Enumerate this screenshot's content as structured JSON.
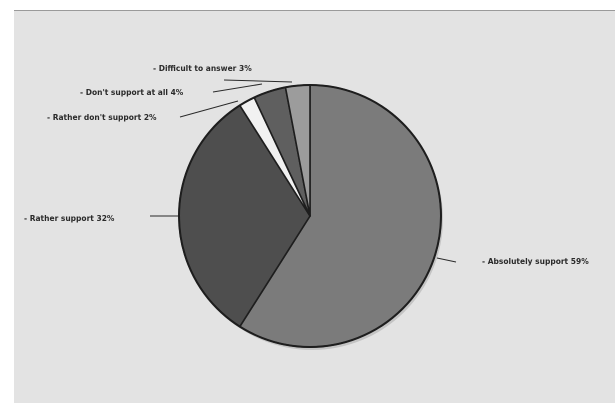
{
  "chart_data": {
    "type": "pie",
    "title": "",
    "slices": [
      {
        "label": "Absolutely support",
        "value": 59,
        "display": "- Absolutely support 59%",
        "color": "#7b7b7b"
      },
      {
        "label": "Rather support",
        "value": 32,
        "display": "- Rather support 32%",
        "color": "#4e4e4e"
      },
      {
        "label": "Rather don't support",
        "value": 2,
        "display": "- Rather don't support 2%",
        "color": "#f1f1f1"
      },
      {
        "label": "Don't support at all",
        "value": 4,
        "display": "- Don't support at all 4%",
        "color": "#5f5f5f"
      },
      {
        "label": "Difficult to answer",
        "value": 3,
        "display": "- Difficult to answer 3%",
        "color": "#9c9c9c"
      }
    ],
    "legend": "none",
    "grid": false
  }
}
